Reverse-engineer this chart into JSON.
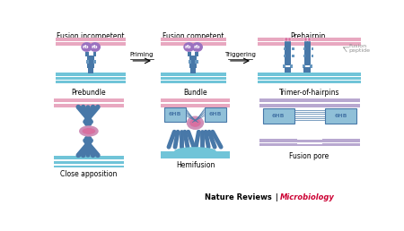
{
  "bg_color": "#ffffff",
  "pink_mem": "#e8a8c0",
  "blue_mem": "#70c4d8",
  "purple": "#9b72c0",
  "dk_blue": "#4878a8",
  "mid_blue": "#6898c0",
  "lt_blue": "#90c0d8",
  "pink_helix": "#d870a0",
  "pink_knob": "#d090b8",
  "lt_purple": "#b8a8d0",
  "gray": "#909090",
  "black": "#000000",
  "nature_red": "#cc0033",
  "titles": [
    "Fusion incompetent",
    "Fusion competent",
    "Prehairpin"
  ],
  "bot_titles": [
    "Prebundle",
    "Bundle",
    "Trimer-of-hairpins"
  ],
  "bot_labels": [
    "Close apposition",
    "Hemifusion",
    "Fusion pore"
  ],
  "priming": "Priming",
  "triggering": "Triggering",
  "fusion_peptide": "Fusion\npeptide",
  "footer_left": "Nature Reviews",
  "footer_right": "Microbiology"
}
